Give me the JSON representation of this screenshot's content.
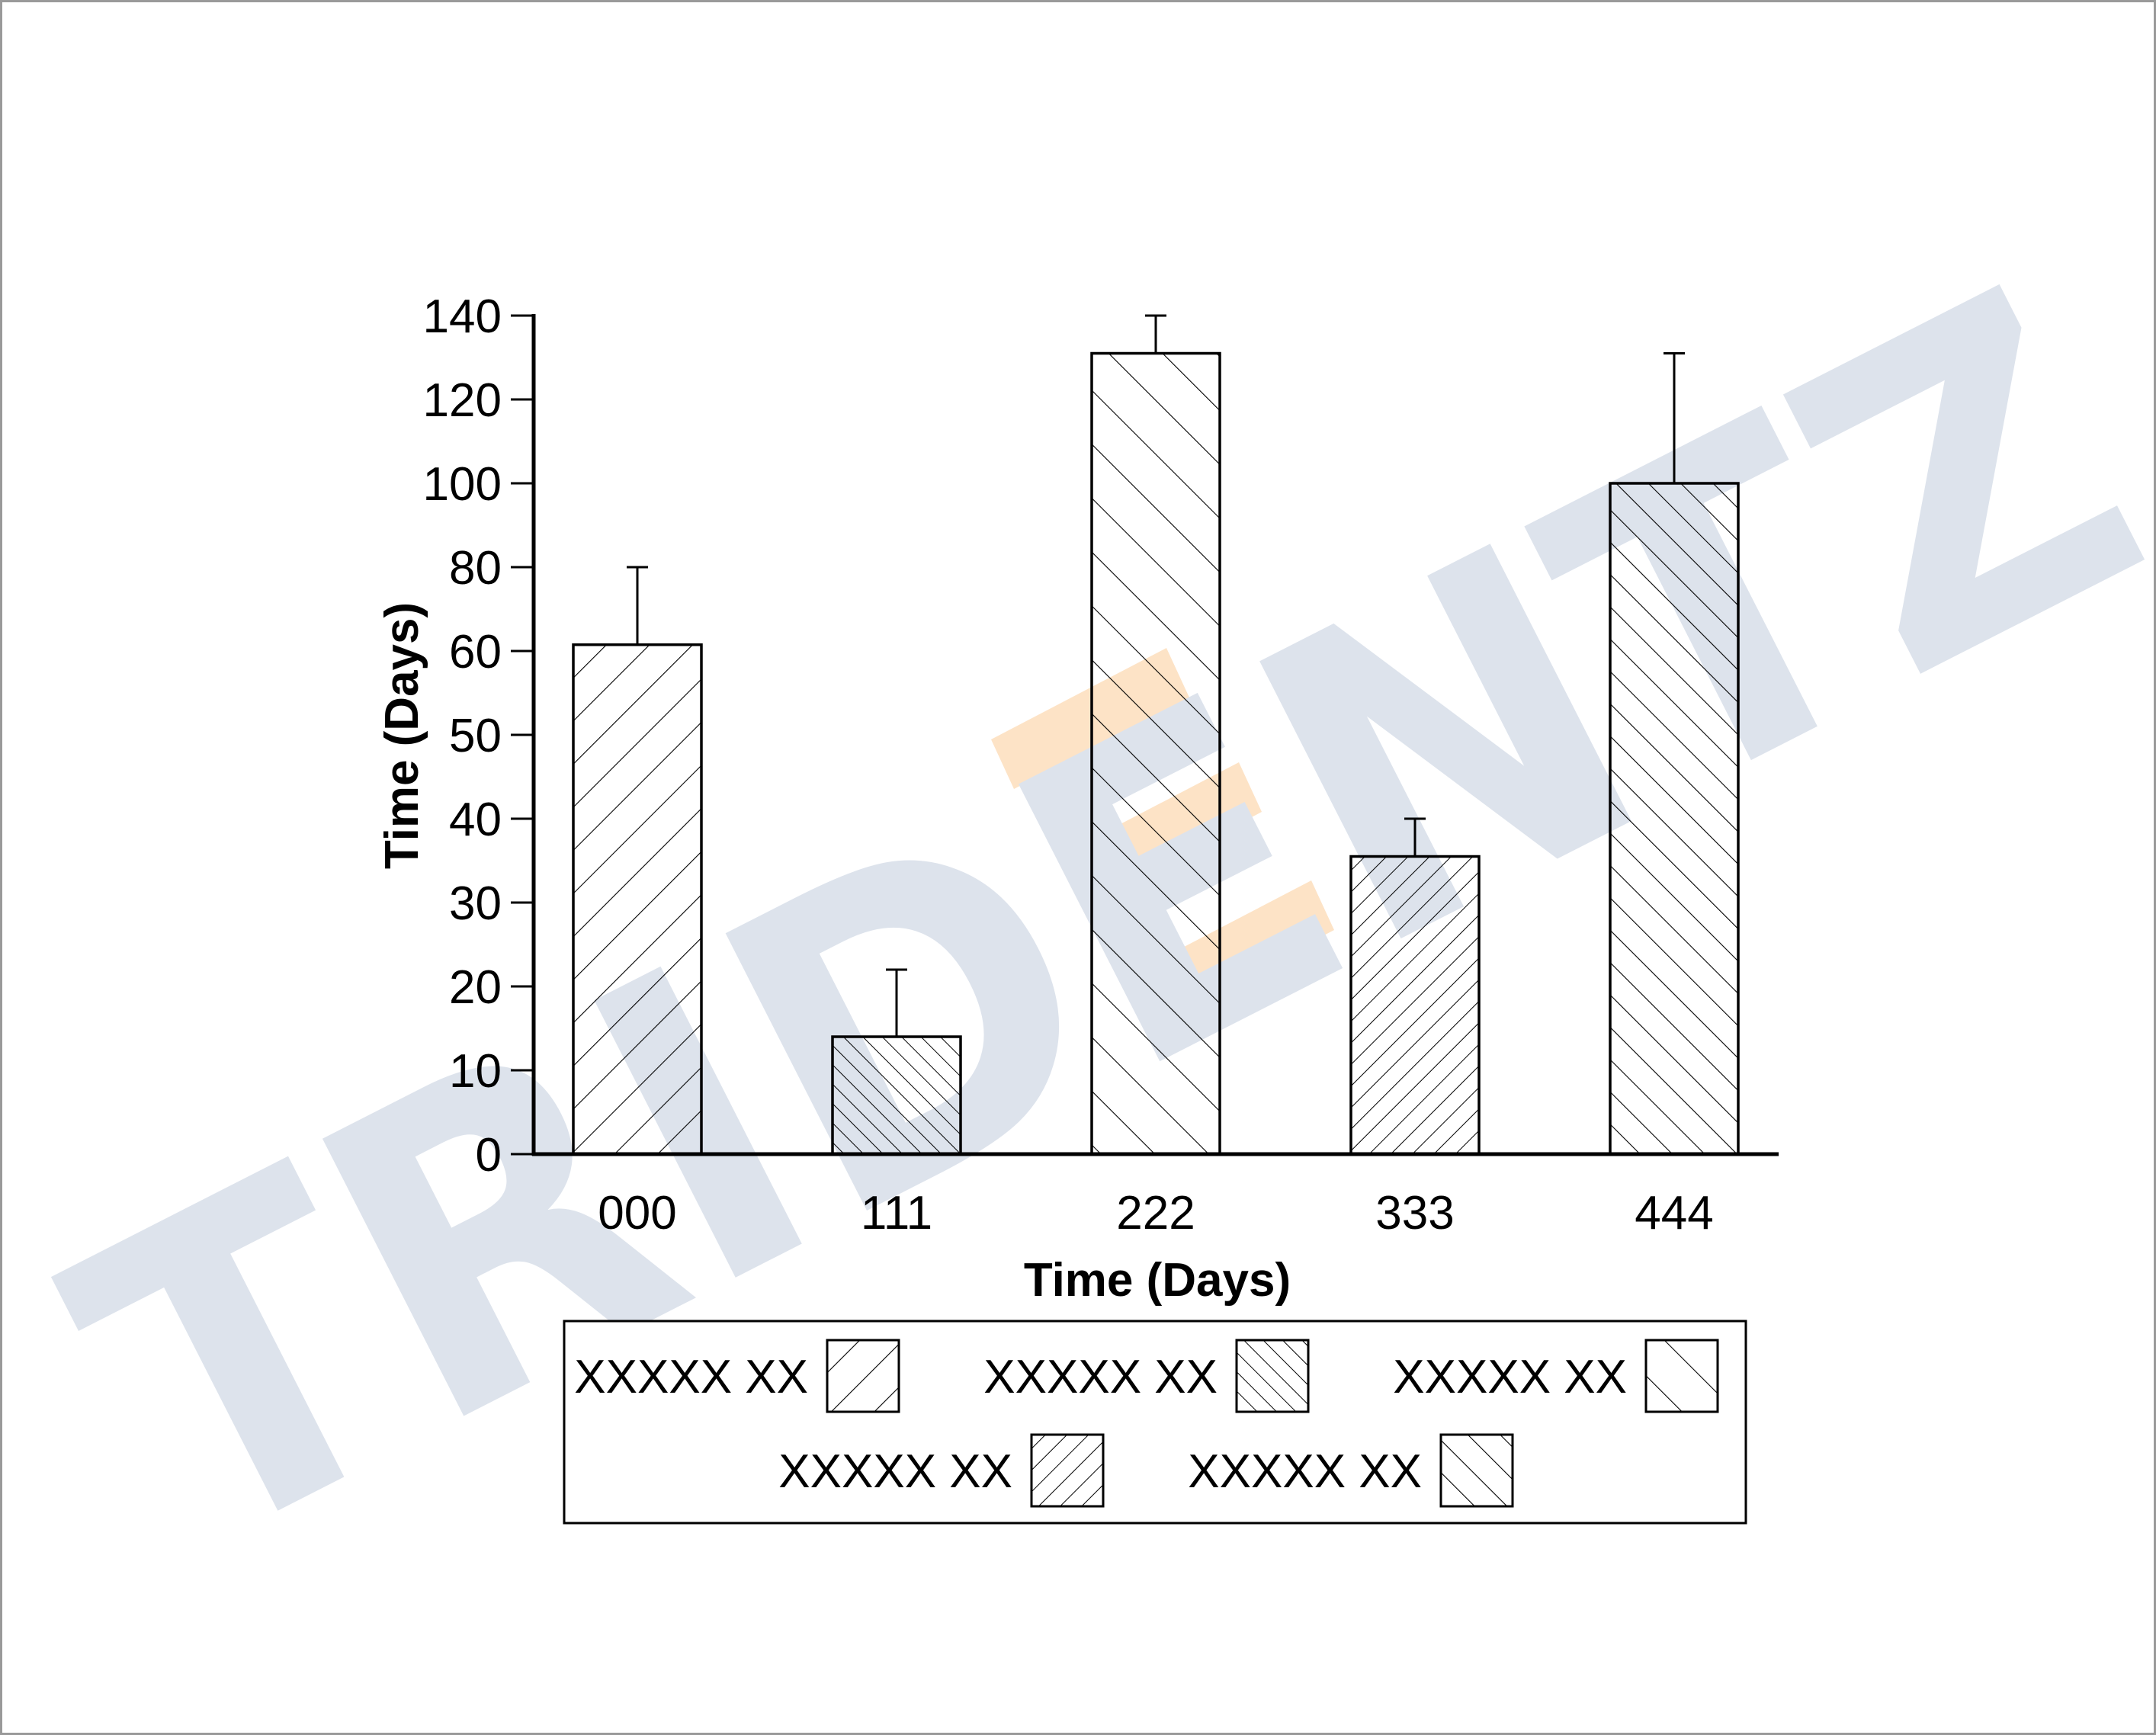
{
  "watermark": {
    "text": "TRIDENTZ",
    "letter_color": "#dde3ec",
    "accent_color": "#fde3c6"
  },
  "chart_data": {
    "type": "bar",
    "categories": [
      "000",
      "111",
      "222",
      "333",
      "444"
    ],
    "values": [
      61.5,
      14,
      131,
      35.5,
      100
    ],
    "errors": [
      18.5,
      8,
      9,
      4.5,
      31
    ],
    "patterns": [
      "back-wide",
      "fwd-dense",
      "fwd-wide",
      "back-dense",
      "fwd-medium"
    ],
    "xlabel": "Time (Days)",
    "ylabel": "Time (Days)",
    "yticks": [
      {
        "value": 0,
        "label": "0"
      },
      {
        "value": 10,
        "label": "10"
      },
      {
        "value": 20,
        "label": "20"
      },
      {
        "value": 30,
        "label": "30"
      },
      {
        "value": 40,
        "label": "40"
      },
      {
        "value": 50,
        "label": "50"
      },
      {
        "value": 60,
        "label": "60"
      },
      {
        "value": 80,
        "label": "80"
      },
      {
        "value": 100,
        "label": "100"
      },
      {
        "value": 120,
        "label": "120"
      },
      {
        "value": 140,
        "label": "140"
      }
    ],
    "ylim": [
      0,
      140
    ],
    "grid": false,
    "legend_position": "bottom",
    "legend": [
      {
        "label": "XXXXX XX",
        "pattern": "back-wide"
      },
      {
        "label": "XXXXX XX",
        "pattern": "fwd-dense"
      },
      {
        "label": "XXXXX XX",
        "pattern": "fwd-wide"
      },
      {
        "label": "XXXXX XX",
        "pattern": "back-dense"
      },
      {
        "label": "XXXXX XX",
        "pattern": "fwd-medium"
      }
    ]
  }
}
